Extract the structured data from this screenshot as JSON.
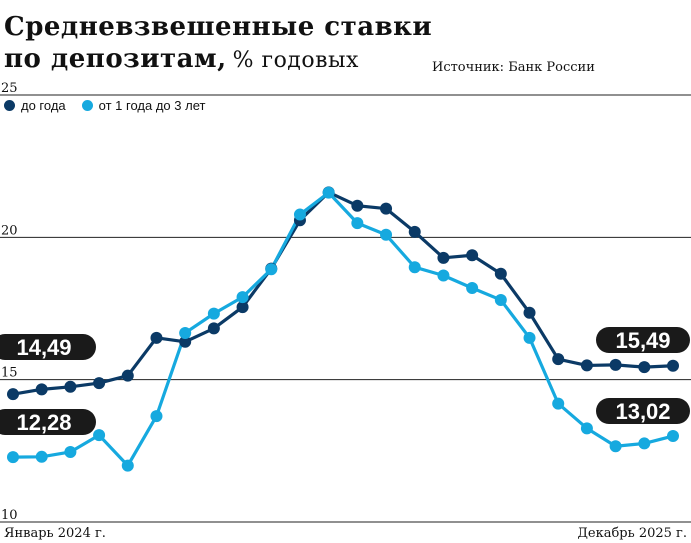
{
  "header": {
    "title_line1": "Средневзвешенные ставки",
    "title_line2": "по депозитам,",
    "subtitle": "% годовых",
    "source": "Источник: Банк России"
  },
  "colors": {
    "series1": "#0b3a66",
    "series2": "#16a9df",
    "grid": "#222222",
    "badge": "#1a1a1a"
  },
  "chart_data": {
    "type": "line",
    "legend_position": "top-left",
    "grid": true,
    "ylim": [
      10,
      25
    ],
    "yticks": [
      "25",
      "20",
      "15",
      "10"
    ],
    "x_start_label": "Январь 2024 г.",
    "x_end_label": "Декабрь 2025 г.",
    "series": [
      {
        "name": "до года",
        "values": [
          14.49,
          14.66,
          14.75,
          14.88,
          15.14,
          16.47,
          16.33,
          16.8,
          17.55,
          18.9,
          20.6,
          21.58,
          21.11,
          21.01,
          20.19,
          19.28,
          19.37,
          18.72,
          17.35,
          15.72,
          15.5,
          15.52,
          15.44,
          15.49
        ],
        "end_label_left": "14,49",
        "end_label_right": "15,49"
      },
      {
        "name": "от 1 года до 3 лет",
        "values": [
          12.28,
          12.29,
          12.46,
          13.05,
          11.98,
          13.72,
          16.64,
          17.32,
          17.9,
          18.88,
          20.8,
          21.57,
          20.5,
          20.09,
          18.95,
          18.66,
          18.22,
          17.8,
          16.47,
          14.16,
          13.29,
          12.66,
          12.76,
          13.02
        ],
        "end_label_left": "12,28",
        "end_label_right": "13,02"
      }
    ]
  }
}
